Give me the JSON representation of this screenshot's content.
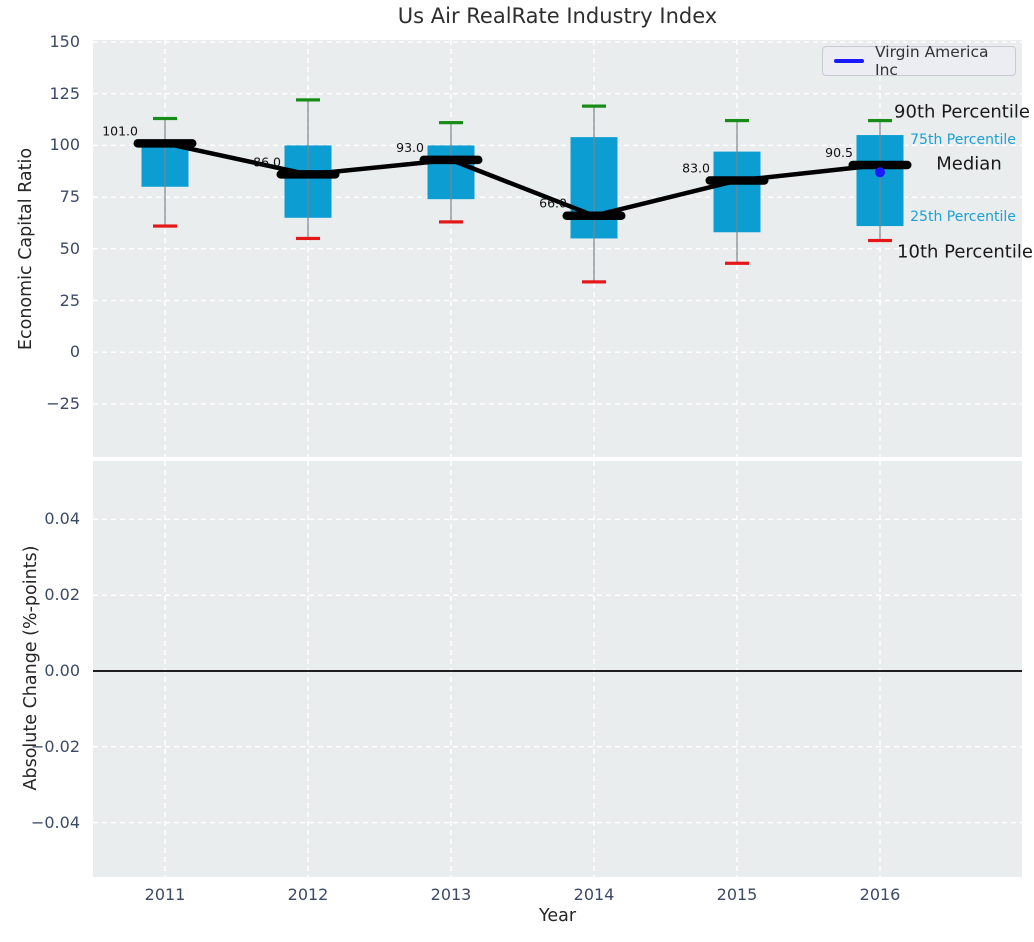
{
  "title": "Us Air RealRate Industry Index",
  "legend": {
    "label": "Virgin America Inc",
    "position": "upper right"
  },
  "annotations": {
    "p90": "90th Percentile",
    "p75": "75th Percentile",
    "median": "Median",
    "p25": "25th Percentile",
    "p10": "10th Percentile"
  },
  "colors": {
    "box_fill": "#0c9dd3",
    "p90_cap": "#168c16",
    "p10_cap": "#e51718",
    "median": "#000000",
    "median_line": "#000000",
    "whisker": "#7b8489",
    "company": "#1a1aff",
    "panel_bg": "#e9edee",
    "grid": "#ffffff",
    "tick_text": "#3b4a66",
    "annotation_blue": "#1da0d6",
    "zero_line": "#000000"
  },
  "chart_data": {
    "type": "boxplot",
    "title": "Us Air RealRate Industry Index",
    "xlabel": "Year",
    "categories": [
      2011,
      2012,
      2013,
      2014,
      2015,
      2016
    ],
    "grid": "white dashed, horizontal and vertical",
    "legend_position": "upper right",
    "panels": [
      {
        "name": "economic-capital-ratio",
        "ylabel": "Economic Capital Ratio",
        "ylim": [
          -51,
          151
        ],
        "yticks": [
          150,
          125,
          100,
          75,
          50,
          25,
          0,
          -25
        ],
        "boxes": [
          {
            "year": 2011,
            "p10": 61,
            "p25": 80,
            "median": 101.0,
            "p75": 100,
            "p90": 113,
            "median_label": "101.0"
          },
          {
            "year": 2012,
            "p10": 55,
            "p25": 65,
            "median": 86.0,
            "p75": 100,
            "p90": 122,
            "median_label": "86.0"
          },
          {
            "year": 2013,
            "p10": 63,
            "p25": 74,
            "median": 93.0,
            "p75": 100,
            "p90": 111,
            "median_label": "93.0"
          },
          {
            "year": 2014,
            "p10": 34,
            "p25": 55,
            "median": 66.0,
            "p75": 104,
            "p90": 119,
            "median_label": "66.0"
          },
          {
            "year": 2015,
            "p10": 43,
            "p25": 58,
            "median": 83.0,
            "p75": 97,
            "p90": 112,
            "median_label": "83.0"
          },
          {
            "year": 2016,
            "p10": 54,
            "p25": 61,
            "median": 90.5,
            "p75": 105,
            "p90": 112,
            "median_label": "90.5"
          }
        ],
        "median_line_values": [
          101.0,
          86.0,
          93.0,
          66.0,
          83.0,
          90.5
        ],
        "company_series": {
          "name": "Virgin America Inc",
          "points": [
            {
              "year": 2016,
              "value": 87
            }
          ]
        }
      },
      {
        "name": "absolute-change",
        "ylabel": "Absolute Change (%-points)",
        "ylim": [
          -0.055,
          0.055
        ],
        "yticks": [
          0.04,
          0.02,
          0.0,
          -0.02,
          -0.04
        ],
        "zero_line": 0.0,
        "series": []
      }
    ]
  }
}
